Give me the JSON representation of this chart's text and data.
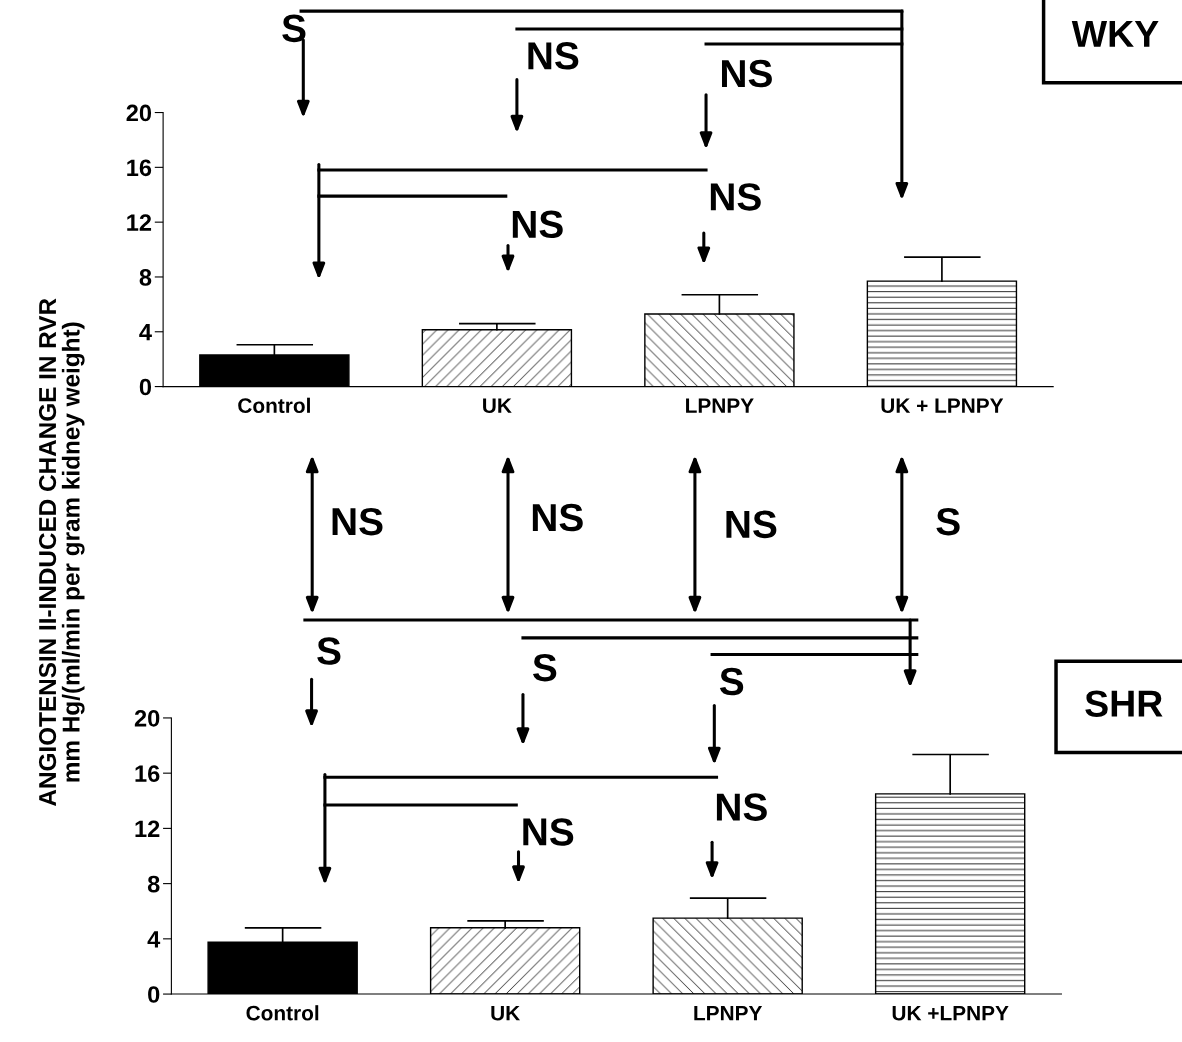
{
  "chart_data": [
    {
      "type": "bar",
      "ylabel": "ANGIOTENSIN II-INDUCED CHANGE IN RVR\nmm Hg/(ml/min per gram kidney weight)",
      "categories": [
        "Control",
        "UK",
        "LPNPY",
        "UK + LPNPY"
      ],
      "values": [
        2.3,
        4.15,
        5.3,
        7.7
      ],
      "errors": [
        [
          2.3,
          3.05
        ],
        [
          4.15,
          4.6
        ],
        [
          5.3,
          6.7
        ],
        [
          7.7,
          9.45
        ]
      ],
      "colors": [
        "#000000",
        "#ffffff",
        "#ffffff",
        "#ffffff"
      ],
      "ylim": [
        0,
        20
      ],
      "yticks": [
        0,
        4,
        8,
        12,
        16,
        20
      ],
      "annotations": [
        "WKY",
        "S",
        "NS",
        "NS",
        "NS",
        "NS",
        "NS",
        "NS",
        "NS",
        "S"
      ]
    },
    {
      "type": "bar",
      "categories": [
        "Control",
        "UK",
        "LPNPY",
        "UK +LPNPY"
      ],
      "values": [
        3.75,
        4.8,
        5.5,
        14.5
      ],
      "errors": [
        [
          3.75,
          4.8
        ],
        [
          4.8,
          5.3
        ],
        [
          5.5,
          6.95
        ],
        [
          14.5,
          17.35
        ]
      ],
      "colors": [
        "#000000",
        "#ffffff",
        "#ffffff",
        "#ffffff"
      ],
      "ylim": [
        0,
        20
      ],
      "yticks": [
        0,
        4,
        8,
        12,
        16,
        20
      ],
      "annotations": [
        "SHR",
        "S",
        "S",
        "S",
        "NS",
        "NS"
      ]
    }
  ]
}
